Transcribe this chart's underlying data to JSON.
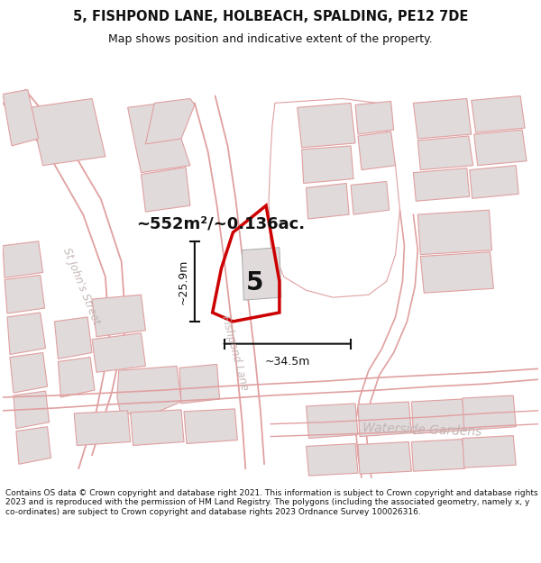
{
  "title_line1": "5, FISHPOND LANE, HOLBEACH, SPALDING, PE12 7DE",
  "title_line2": "Map shows position and indicative extent of the property.",
  "footer": "Contains OS data © Crown copyright and database right 2021. This information is subject to Crown copyright and database rights 2023 and is reproduced with the permission of HM Land Registry. The polygons (including the associated geometry, namely x, y co-ordinates) are subject to Crown copyright and database rights 2023 Ordnance Survey 100026316.",
  "area_text": "~552m²/~0.136ac.",
  "label_number": "5",
  "dim_width": "~34.5m",
  "dim_height": "~25.9m",
  "road_label_1": "St John's Street",
  "road_label_2": "Fishpond Lane",
  "road_label_3": "Waterside Gardens",
  "map_bg": "#f9f6f6",
  "building_fill": "#e0dadb",
  "building_edge": "#e0a0a0",
  "parcel_edge": "#e0a0a0",
  "highlight_color": "#cc0000",
  "road_label_color": "#c0b0b0",
  "dim_color": "#111111",
  "title_color": "#111111",
  "footer_color": "#111111"
}
